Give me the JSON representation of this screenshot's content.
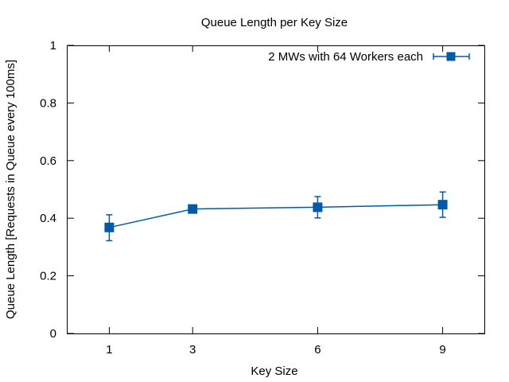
{
  "chart_data": {
    "type": "line",
    "title": "Queue Length per Key Size",
    "xlabel": "Key Size",
    "ylabel": "Queue Length [Requests in Queue every 100ms]",
    "x_ticks": [
      "1",
      "3",
      "6",
      "9"
    ],
    "y_ticks": [
      "0",
      "0.2",
      "0.4",
      "0.6",
      "0.8",
      "1"
    ],
    "xlim": [
      0,
      10
    ],
    "ylim": [
      0,
      1
    ],
    "grid": false,
    "legend_position": "top-right",
    "series": [
      {
        "name": "2 MWs with 64 Workers each",
        "color": "#005aa8",
        "marker": "square",
        "x": [
          1,
          3,
          6,
          9
        ],
        "y": [
          0.368,
          0.432,
          0.438,
          0.447
        ],
        "error_low": [
          0.322,
          0.427,
          0.401,
          0.403
        ],
        "error_high": [
          0.412,
          0.437,
          0.475,
          0.491
        ]
      }
    ]
  }
}
